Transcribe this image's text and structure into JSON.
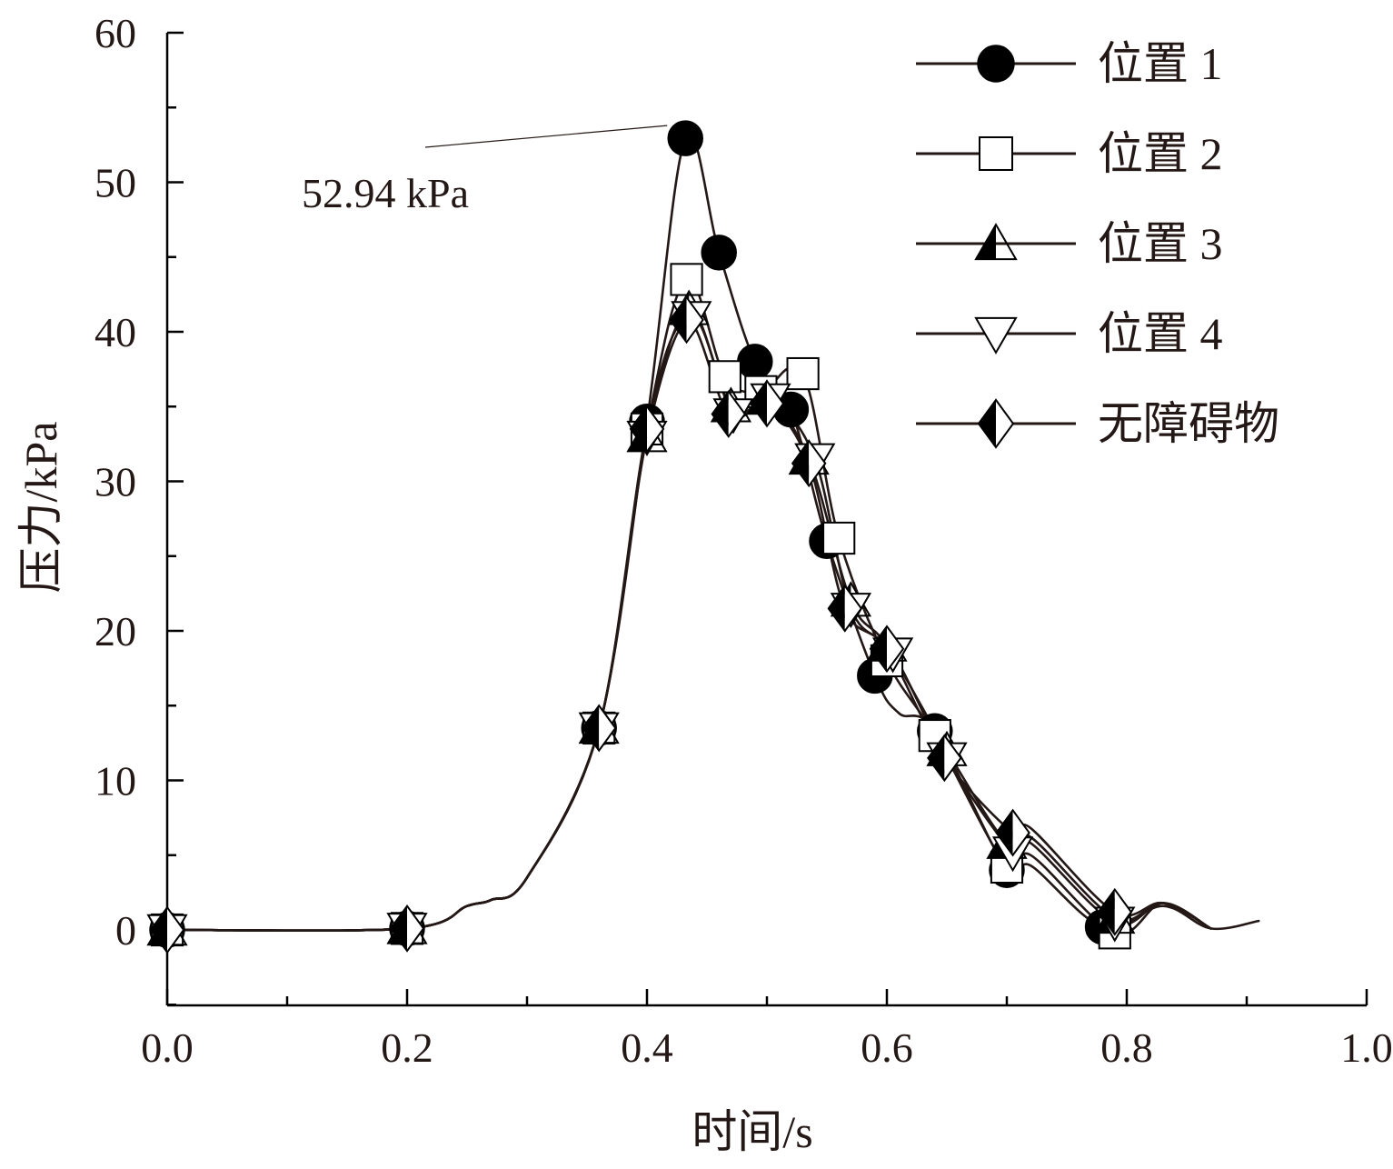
{
  "chart_data": {
    "type": "line",
    "xlabel": "时间/s",
    "ylabel": "压力/kPa",
    "xlim": [
      0.0,
      1.0
    ],
    "ylim": [
      -5,
      60
    ],
    "xticks": [
      "0.0",
      "0.2",
      "0.4",
      "0.6",
      "0.8",
      "1.0"
    ],
    "yticks": [
      "0",
      "10",
      "20",
      "30",
      "40",
      "50",
      "60"
    ],
    "legend_position": "top-right",
    "annotation": {
      "text": "52.94 kPa",
      "x": 0.432,
      "y": 52.94
    },
    "series": [
      {
        "name": "位置 1",
        "marker": "circle-filled",
        "x": [
          0.0,
          0.2,
          0.25,
          0.27,
          0.3,
          0.36,
          0.4,
          0.432,
          0.46,
          0.49,
          0.52,
          0.55,
          0.59,
          0.61,
          0.64,
          0.7,
          0.72,
          0.78,
          0.83,
          0.87,
          0.91
        ],
        "y": [
          0,
          0.1,
          1.6,
          2.0,
          3.5,
          13.5,
          34,
          52.94,
          45.3,
          38,
          34.8,
          26,
          17,
          14.5,
          13.3,
          4.0,
          4.3,
          0.2,
          1.6,
          0.1,
          0.6
        ],
        "marker_x": [
          0.0,
          0.2,
          0.36,
          0.4,
          0.432,
          0.46,
          0.49,
          0.52,
          0.55,
          0.59,
          0.64,
          0.7,
          0.78
        ],
        "marker_y": [
          0,
          0.1,
          13.5,
          34,
          52.94,
          45.3,
          38,
          34.8,
          26,
          17,
          13.3,
          4.0,
          0.2
        ]
      },
      {
        "name": "位置 2",
        "marker": "square-open",
        "x": [
          0.0,
          0.2,
          0.25,
          0.27,
          0.3,
          0.36,
          0.4,
          0.433,
          0.465,
          0.495,
          0.53,
          0.56,
          0.6,
          0.64,
          0.7,
          0.72,
          0.79,
          0.83,
          0.87
        ],
        "y": [
          0,
          0.1,
          1.6,
          2.0,
          3.5,
          13.5,
          33.5,
          43.5,
          37,
          36,
          37.2,
          26.2,
          18,
          13,
          4.2,
          5.0,
          -0.2,
          1.8,
          0.1
        ],
        "marker_x": [
          0.0,
          0.2,
          0.36,
          0.4,
          0.433,
          0.465,
          0.495,
          0.53,
          0.56,
          0.6,
          0.64,
          0.7,
          0.79
        ],
        "marker_y": [
          0,
          0.1,
          13.5,
          33.5,
          43.5,
          37,
          36,
          37.2,
          26.2,
          18,
          13,
          4.2,
          -0.2
        ]
      },
      {
        "name": "位置 3",
        "marker": "triangle-up-half",
        "x": [
          0.0,
          0.2,
          0.25,
          0.27,
          0.3,
          0.36,
          0.4,
          0.435,
          0.47,
          0.5,
          0.535,
          0.57,
          0.6,
          0.65,
          0.7,
          0.72,
          0.79,
          0.83,
          0.87
        ],
        "y": [
          0,
          0.1,
          1.6,
          2.0,
          3.5,
          13.5,
          33,
          41.5,
          35,
          35.5,
          31.5,
          22,
          19,
          12,
          5.8,
          6.2,
          0.8,
          1.8,
          0.1
        ],
        "marker_x": [
          0.0,
          0.2,
          0.36,
          0.4,
          0.435,
          0.47,
          0.5,
          0.535,
          0.57,
          0.6,
          0.65,
          0.7,
          0.79
        ],
        "marker_y": [
          0,
          0.1,
          13.5,
          33,
          41.5,
          35,
          35.5,
          31.5,
          22,
          19,
          12,
          5.8,
          0.8
        ]
      },
      {
        "name": "位置 4",
        "marker": "triangle-down-open",
        "x": [
          0.0,
          0.2,
          0.25,
          0.27,
          0.3,
          0.36,
          0.4,
          0.437,
          0.472,
          0.503,
          0.54,
          0.57,
          0.605,
          0.65,
          0.705,
          0.72,
          0.79,
          0.83,
          0.87
        ],
        "y": [
          0,
          0.1,
          1.6,
          2.0,
          3.5,
          13.5,
          33,
          41,
          34.5,
          35.5,
          31.5,
          21.5,
          18.5,
          11.5,
          5.2,
          5.8,
          0.5,
          1.8,
          0.1
        ],
        "marker_x": [
          0.0,
          0.2,
          0.36,
          0.4,
          0.437,
          0.472,
          0.503,
          0.54,
          0.57,
          0.605,
          0.65,
          0.705,
          0.79
        ],
        "marker_y": [
          0,
          0.1,
          13.5,
          33,
          41,
          34.5,
          35.5,
          31.5,
          21.5,
          18.5,
          11.5,
          5.2,
          0.5
        ]
      },
      {
        "name": "无障碍物",
        "marker": "diamond-half",
        "x": [
          0.0,
          0.2,
          0.25,
          0.27,
          0.3,
          0.36,
          0.4,
          0.433,
          0.468,
          0.5,
          0.535,
          0.565,
          0.6,
          0.648,
          0.705,
          0.72,
          0.79,
          0.83,
          0.87
        ],
        "y": [
          0,
          0.1,
          1.6,
          2.0,
          3.5,
          13.5,
          33.5,
          40.8,
          34.5,
          35.2,
          31.2,
          21.5,
          18.8,
          11.5,
          6.5,
          6.8,
          1.2,
          1.8,
          0.1
        ],
        "marker_x": [
          0.0,
          0.2,
          0.36,
          0.4,
          0.433,
          0.468,
          0.5,
          0.535,
          0.565,
          0.6,
          0.648,
          0.705,
          0.79
        ],
        "marker_y": [
          0,
          0.1,
          13.5,
          33.5,
          40.8,
          34.5,
          35.2,
          31.2,
          21.5,
          18.8,
          11.5,
          6.5,
          1.2
        ]
      }
    ]
  }
}
